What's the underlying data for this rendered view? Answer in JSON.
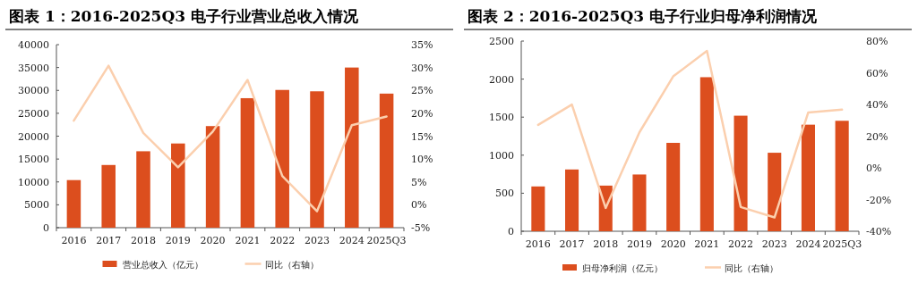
{
  "chart_data": [
    {
      "type": "bar",
      "title": "图表 1：2016-2025Q3 电子行业营业总收入情况",
      "categories": [
        "2016",
        "2017",
        "2018",
        "2019",
        "2020",
        "2021",
        "2022",
        "2023",
        "2024",
        "2025Q3"
      ],
      "series": [
        {
          "name": "营业总收入（亿元）",
          "color": "#dc4e1e",
          "values": [
            10400,
            13700,
            16700,
            18400,
            22200,
            28300,
            30100,
            29800,
            35000,
            29300
          ]
        },
        {
          "name": "同比（右轴）",
          "type": "line",
          "axis": "y2",
          "color": "#fbcfae",
          "values": [
            18.4,
            30.4,
            15.7,
            8.2,
            16.0,
            27.3,
            6.3,
            -1.4,
            17.4,
            19.3
          ]
        }
      ],
      "ylim": [
        0,
        40000
      ],
      "yticks": [
        0,
        5000,
        10000,
        15000,
        20000,
        25000,
        30000,
        35000,
        40000
      ],
      "y2lim": [
        -5,
        35
      ],
      "y2ticks": [
        {
          "value": -5,
          "label": "-5%"
        },
        {
          "value": 0,
          "label": "0%"
        },
        {
          "value": 5,
          "label": "5%"
        },
        {
          "value": 10,
          "label": "10%"
        },
        {
          "value": 15,
          "label": "15%"
        },
        {
          "value": 20,
          "label": "20%"
        },
        {
          "value": 25,
          "label": "25%"
        },
        {
          "value": 30,
          "label": "30%"
        },
        {
          "value": 35,
          "label": "35%"
        }
      ],
      "legend": "bottom"
    },
    {
      "type": "bar",
      "title": "图表 2：2016-2025Q3 电子行业归母净利润情况",
      "categories": [
        "2016",
        "2017",
        "2018",
        "2019",
        "2020",
        "2021",
        "2022",
        "2023",
        "2024",
        "2025Q3"
      ],
      "series": [
        {
          "name": "归母净利润（亿元）",
          "color": "#dc4e1e",
          "values": [
            589,
            812,
            600,
            746,
            1162,
            2025,
            1519,
            1032,
            1401,
            1452
          ]
        },
        {
          "name": "同比（右轴）",
          "type": "line",
          "axis": "y2",
          "color": "#fbcfae",
          "values": [
            27.1,
            39.9,
            -25.3,
            22.4,
            57.7,
            73.8,
            -24.7,
            -31.3,
            35.0,
            36.7
          ]
        }
      ],
      "ylim": [
        0,
        2500
      ],
      "yticks": [
        0,
        500,
        1000,
        1500,
        2000,
        2500
      ],
      "y2lim": [
        -40,
        80
      ],
      "y2ticks": [
        {
          "value": -40,
          "label": "-40%"
        },
        {
          "value": -20,
          "label": "-20%"
        },
        {
          "value": 0,
          "label": "0%"
        },
        {
          "value": 20,
          "label": "20%"
        },
        {
          "value": 40,
          "label": "40%"
        },
        {
          "value": 60,
          "label": "60%"
        },
        {
          "value": 80,
          "label": "80%"
        }
      ],
      "legend": "bottom"
    }
  ]
}
